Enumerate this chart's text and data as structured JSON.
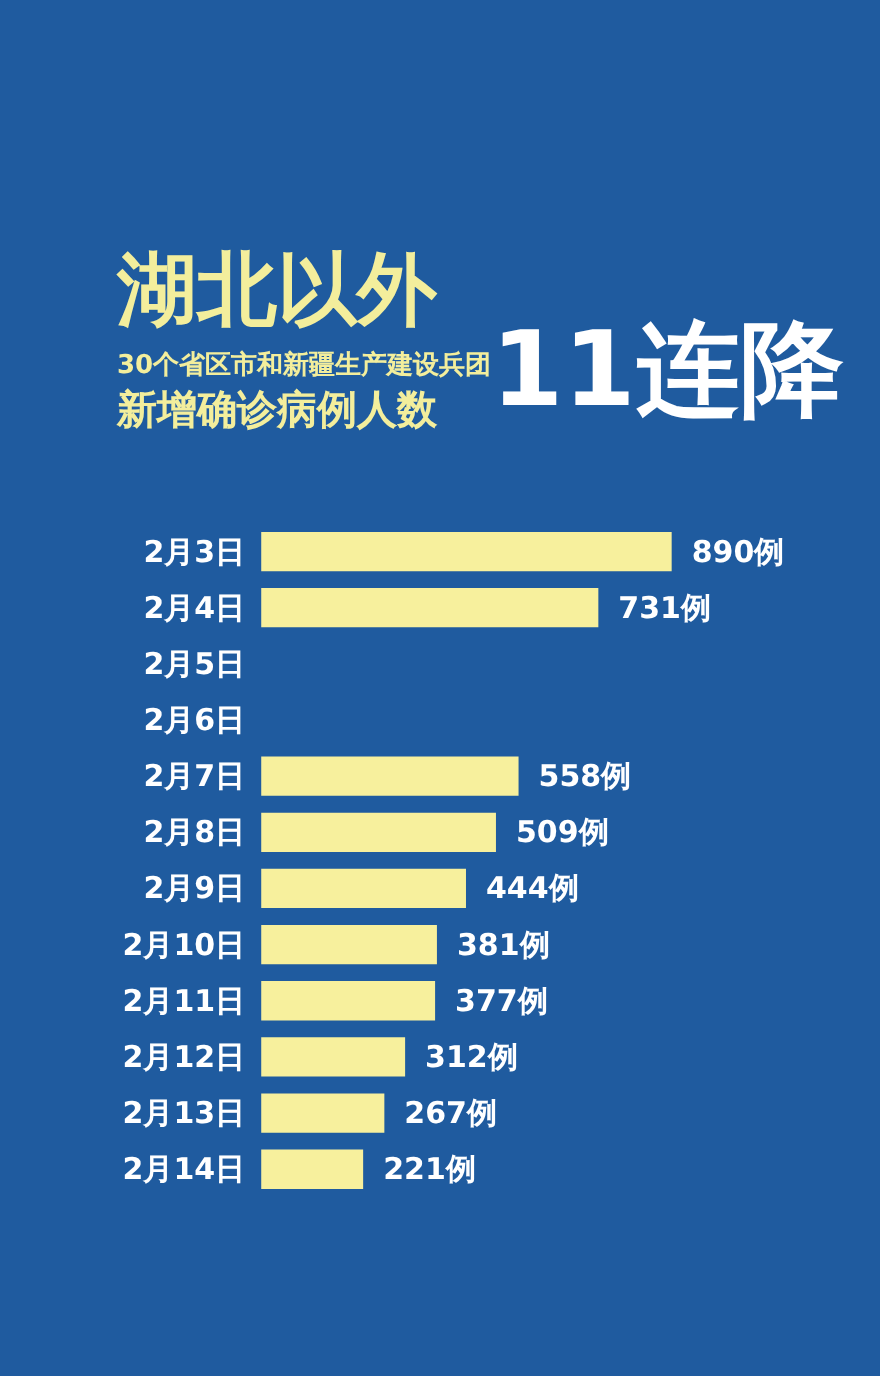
{
  "chart_data": {
    "type": "bar",
    "orientation": "horizontal",
    "title": "湖北以外",
    "subtitle": "30个省区市和新疆生产建设兵团",
    "annotations": [
      "新增确诊病例人数",
      "11连降"
    ],
    "categories": [
      "2月3日",
      "2月4日",
      "2月5日",
      "2月6日",
      "2月7日",
      "2月8日",
      "2月9日",
      "2月10日",
      "2月11日",
      "2月12日",
      "2月13日",
      "2月14日"
    ],
    "values": [
      890,
      731,
      null,
      null,
      558,
      509,
      444,
      381,
      377,
      312,
      267,
      221
    ],
    "value_labels": [
      "890例",
      "731例",
      null,
      null,
      "558例",
      "509例",
      "444例",
      "381例",
      "377例",
      "312例",
      "267例",
      "221例"
    ],
    "color": "#f7f09d"
  }
}
